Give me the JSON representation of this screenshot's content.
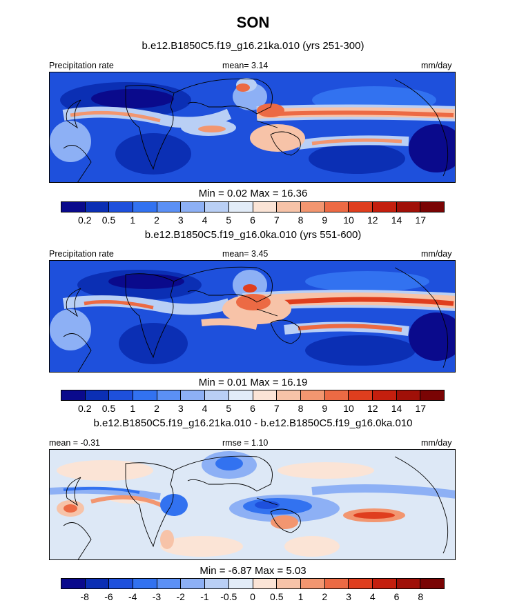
{
  "figure": {
    "title": "SON"
  },
  "panels": [
    {
      "title": "b.e12.B1850C5.f19_g16.21ka.010 (yrs 251-300)",
      "left_label": "Precipitation rate",
      "center_label": "mean=   3.14",
      "right_label": "mm/day",
      "minmax": "Min =   0.02 Max =  16.36"
    },
    {
      "title": "b.e12.B1850C5.f19_g16.0ka.010 (yrs 551-600)",
      "left_label": "Precipitation rate",
      "center_label": "mean=   3.45",
      "right_label": "mm/day",
      "minmax": "Min =   0.01 Max =  16.19"
    },
    {
      "title": "b.e12.B1850C5.f19_g16.21ka.010 - b.e12.B1850C5.f19_g16.0ka.010",
      "left_label": "mean =  -0.31",
      "center_label": "rmse =   1.10",
      "right_label": "mm/day",
      "minmax": "Min =  -6.87 Max =   5.03"
    }
  ],
  "colorbars": {
    "precip": {
      "ticks": [
        "0.2",
        "0.5",
        "1",
        "2",
        "3",
        "4",
        "5",
        "6",
        "7",
        "8",
        "9",
        "10",
        "12",
        "14",
        "17"
      ],
      "colors": [
        "#0a0a8c",
        "#0b2fb4",
        "#1e50dc",
        "#3272f0",
        "#5b90f5",
        "#8db0f5",
        "#b9cff5",
        "#e2ecf8",
        "#fbe4d6",
        "#f7c3a8",
        "#f29670",
        "#ec6a44",
        "#df3e1e",
        "#c41f0e",
        "#a01008",
        "#7a0404"
      ]
    },
    "diff": {
      "ticks": [
        "-8",
        "-6",
        "-4",
        "-3",
        "-2",
        "-1",
        "-0.5",
        "0",
        "0.5",
        "1",
        "2",
        "3",
        "4",
        "6",
        "8"
      ],
      "colors": [
        "#0a0a8c",
        "#0b2fb4",
        "#1e50dc",
        "#3272f0",
        "#5b90f5",
        "#8db0f5",
        "#b9cff5",
        "#e2ecf8",
        "#fbe4d6",
        "#f7c3a8",
        "#f29670",
        "#ec6a44",
        "#df3e1e",
        "#c41f0e",
        "#a01008",
        "#7a0404"
      ]
    }
  },
  "colors": {
    "precip_background": "#1e50dc",
    "diff_background": "#dde8f6",
    "coastline": "#000000"
  }
}
